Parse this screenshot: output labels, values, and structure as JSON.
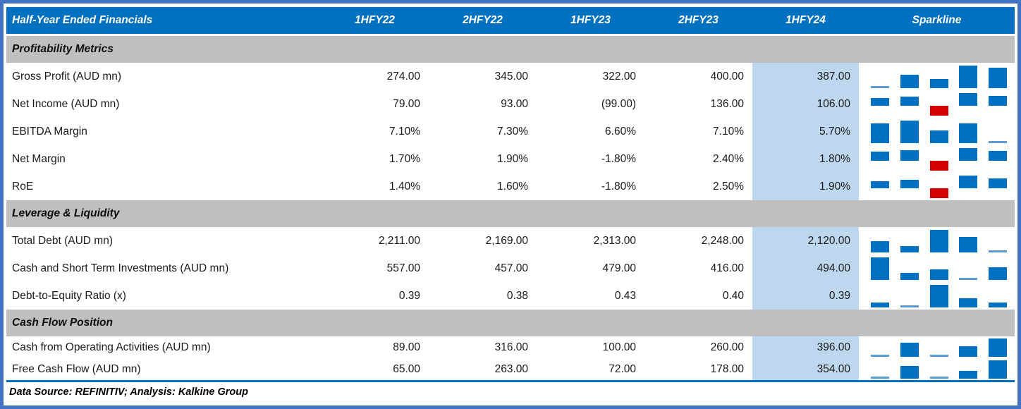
{
  "table": {
    "title": "Half-Year Ended Financials",
    "columns": [
      "1HFY22",
      "2HFY22",
      "1HFY23",
      "2HFY23",
      "1HFY24",
      "Sparkline"
    ],
    "highlight_column": "1HFY24",
    "sections": [
      {
        "label": "Profitability Metrics",
        "rows": [
          {
            "label": "Gross Profit (AUD mn)",
            "values": [
              "274.00",
              "345.00",
              "322.00",
              "400.00",
              "387.00"
            ],
            "spark": [
              274,
              345,
              322,
              400,
              387
            ]
          },
          {
            "label": "Net Income (AUD mn)",
            "values": [
              "79.00",
              "93.00",
              "(99.00)",
              "136.00",
              "106.00"
            ],
            "spark": [
              79,
              93,
              -99,
              136,
              106
            ]
          },
          {
            "label": "EBITDA Margin",
            "values": [
              "7.10%",
              "7.30%",
              "6.60%",
              "7.10%",
              "5.70%"
            ],
            "spark": [
              7.1,
              7.3,
              6.6,
              7.1,
              5.7
            ]
          },
          {
            "label": "Net Margin",
            "values": [
              "1.70%",
              "1.90%",
              "-1.80%",
              "2.40%",
              "1.80%"
            ],
            "spark": [
              1.7,
              1.9,
              -1.8,
              2.4,
              1.8
            ]
          },
          {
            "label": "RoE",
            "values": [
              "1.40%",
              "1.60%",
              "-1.80%",
              "2.50%",
              "1.90%"
            ],
            "spark": [
              1.4,
              1.6,
              -1.8,
              2.5,
              1.9
            ]
          }
        ]
      },
      {
        "label": "Leverage & Liquidity",
        "rows": [
          {
            "label": "Total Debt (AUD mn)",
            "values": [
              "2,211.00",
              "2,169.00",
              "2,313.00",
              "2,248.00",
              "2,120.00"
            ],
            "spark": [
              2211,
              2169,
              2313,
              2248,
              2120
            ]
          },
          {
            "label": "Cash and Short Term Investments (AUD mn)",
            "values": [
              "557.00",
              "457.00",
              "479.00",
              "416.00",
              "494.00"
            ],
            "spark": [
              557,
              457,
              479,
              416,
              494
            ]
          },
          {
            "label": "Debt-to-Equity Ratio (x)",
            "values": [
              "0.39",
              "0.38",
              "0.43",
              "0.40",
              "0.39"
            ],
            "spark": [
              0.39,
              0.38,
              0.43,
              0.4,
              0.39
            ]
          }
        ]
      },
      {
        "label": "Cash Flow Position",
        "rows": [
          {
            "label": "Cash from Operating Activities (AUD mn)",
            "values": [
              "89.00",
              "316.00",
              "100.00",
              "260.00",
              "396.00"
            ],
            "spark": [
              89,
              316,
              100,
              260,
              396
            ]
          },
          {
            "label": "Free Cash Flow (AUD mn)",
            "values": [
              "65.00",
              "263.00",
              "72.00",
              "178.00",
              "354.00"
            ],
            "spark": [
              65,
              263,
              72,
              178,
              354
            ]
          }
        ]
      }
    ],
    "footer": "Data Source: REFINITIV; Analysis: Kalkine Group"
  },
  "colors": {
    "header_blue": "#0070C0",
    "outer_border_blue": "#4472C4",
    "section_gray": "#BFBFBF",
    "highlight_column_blue": "#BDD7EE",
    "spark_bar_blue": "#0070C0",
    "spark_bar_min_light_blue": "#5B9BD5",
    "spark_bar_negative_red": "#D40000"
  },
  "chart_data": {
    "type": "table",
    "title": "Half-Year Ended Financials",
    "categories": [
      "1HFY22",
      "2HFY22",
      "1HFY23",
      "2HFY23",
      "1HFY24"
    ],
    "series": [
      {
        "name": "Gross Profit (AUD mn)",
        "values": [
          274,
          345,
          322,
          400,
          387
        ]
      },
      {
        "name": "Net Income (AUD mn)",
        "values": [
          79,
          93,
          -99,
          136,
          106
        ]
      },
      {
        "name": "EBITDA Margin (%)",
        "values": [
          7.1,
          7.3,
          6.6,
          7.1,
          5.7
        ]
      },
      {
        "name": "Net Margin (%)",
        "values": [
          1.7,
          1.9,
          -1.8,
          2.4,
          1.8
        ]
      },
      {
        "name": "RoE (%)",
        "values": [
          1.4,
          1.6,
          -1.8,
          2.5,
          1.9
        ]
      },
      {
        "name": "Total Debt (AUD mn)",
        "values": [
          2211,
          2169,
          2313,
          2248,
          2120
        ]
      },
      {
        "name": "Cash and Short Term Investments (AUD mn)",
        "values": [
          557,
          457,
          479,
          416,
          494
        ]
      },
      {
        "name": "Debt-to-Equity Ratio (x)",
        "values": [
          0.39,
          0.38,
          0.43,
          0.4,
          0.39
        ]
      },
      {
        "name": "Cash from Operating Activities (AUD mn)",
        "values": [
          89,
          316,
          100,
          260,
          396
        ]
      },
      {
        "name": "Free Cash Flow (AUD mn)",
        "values": [
          65,
          263,
          72,
          178,
          354
        ]
      }
    ],
    "layout_hints": {
      "sparkline_per_row": "column sparkline, min-to-max auto scale, negatives red below zero axis",
      "highlighted_category": "1HFY24"
    }
  }
}
